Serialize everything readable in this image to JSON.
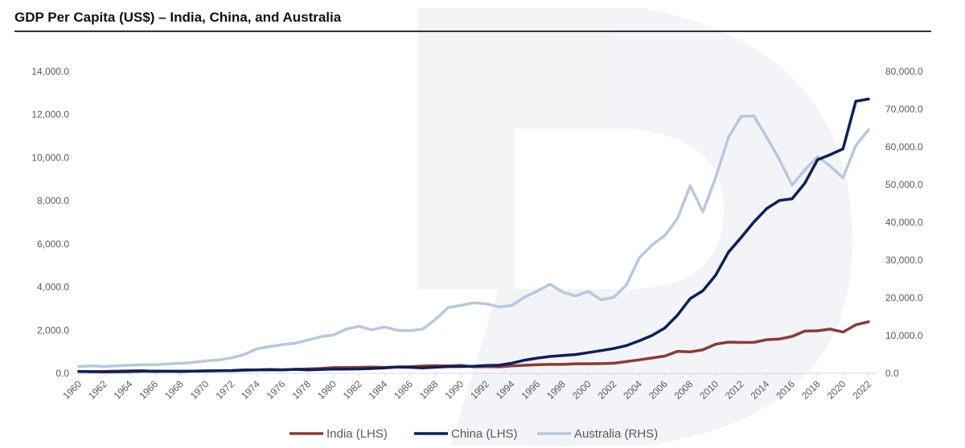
{
  "title": "GDP Per Capita (US$) – India, China, and Australia",
  "chart_data": {
    "type": "line",
    "title": "GDP Per Capita (US$) – India, China, and Australia",
    "xlabel": "",
    "ylabel_left": "",
    "ylabel_right": "",
    "x": [
      1960,
      1961,
      1962,
      1963,
      1964,
      1965,
      1966,
      1967,
      1968,
      1969,
      1970,
      1971,
      1972,
      1973,
      1974,
      1975,
      1976,
      1977,
      1978,
      1979,
      1980,
      1981,
      1982,
      1983,
      1984,
      1985,
      1986,
      1987,
      1988,
      1989,
      1990,
      1991,
      1992,
      1993,
      1994,
      1995,
      1996,
      1997,
      1998,
      1999,
      2000,
      2001,
      2002,
      2003,
      2004,
      2005,
      2006,
      2007,
      2008,
      2009,
      2010,
      2011,
      2012,
      2013,
      2014,
      2015,
      2016,
      2017,
      2018,
      2019,
      2020,
      2021,
      2022
    ],
    "x_tick_labels": [
      "1960",
      "1962",
      "1964",
      "1966",
      "1968",
      "1970",
      "1972",
      "1974",
      "1976",
      "1978",
      "1980",
      "1982",
      "1984",
      "1986",
      "1988",
      "1990",
      "1992",
      "1994",
      "1996",
      "1998",
      "2000",
      "2002",
      "2004",
      "2006",
      "2008",
      "2010",
      "2012",
      "2014",
      "2016",
      "2018",
      "2020",
      "2022"
    ],
    "ylim_left": [
      0,
      14000
    ],
    "ylim_right": [
      0,
      80000
    ],
    "y_ticks_left": [
      "0.0",
      "2,000.0",
      "4,000.0",
      "6,000.0",
      "8,000.0",
      "10,000.0",
      "12,000.0",
      "14,000.0"
    ],
    "y_ticks_right": [
      "0.0",
      "10,000.0",
      "20,000.0",
      "30,000.0",
      "40,000.0",
      "50,000.0",
      "60,000.0",
      "70,000.0",
      "80,000.0"
    ],
    "grid": false,
    "legend_position": "bottom-center",
    "series": [
      {
        "name": "India (LHS)",
        "axis": "left",
        "color": "#8B3A36",
        "values": [
          82,
          85,
          89,
          101,
          115,
          119,
          90,
          96,
          99,
          106,
          112,
          118,
          122,
          143,
          163,
          158,
          161,
          186,
          204,
          222,
          266,
          271,
          274,
          291,
          277,
          296,
          310,
          340,
          354,
          347,
          368,
          303,
          317,
          301,
          346,
          374,
          400,
          415,
          413,
          442,
          443,
          452,
          471,
          546,
          624,
          710,
          802,
          1022,
          993,
          1096,
          1351,
          1450,
          1434,
          1438,
          1560,
          1590,
          1714,
          1958,
          1974,
          2050,
          1913,
          2250,
          2389
        ]
      },
      {
        "name": "China (LHS)",
        "axis": "left",
        "color": "#0D1F5C",
        "values": [
          90,
          76,
          70,
          74,
          85,
          98,
          104,
          97,
          91,
          100,
          113,
          118,
          132,
          157,
          160,
          178,
          165,
          185,
          156,
          184,
          195,
          197,
          203,
          225,
          251,
          294,
          281,
          252,
          284,
          311,
          318,
          333,
          366,
          377,
          473,
          609,
          709,
          781,
          828,
          873,
          959,
          1053,
          1149,
          1289,
          1509,
          1753,
          2099,
          2694,
          3468,
          3832,
          4550,
          5614,
          6301,
          7020,
          7636,
          8017,
          8094,
          8817,
          9905,
          10144,
          10409,
          12618,
          12720
        ]
      },
      {
        "name": "Australia (RHS)",
        "axis": "right",
        "color": "#B8C7E0",
        "values": [
          1800,
          1950,
          1800,
          2000,
          2150,
          2300,
          2300,
          2500,
          2650,
          2900,
          3300,
          3550,
          4100,
          5000,
          6500,
          7100,
          7600,
          8000,
          8800,
          9700,
          10200,
          11700,
          12500,
          11500,
          12300,
          11400,
          11300,
          11700,
          14300,
          17400,
          18000,
          18700,
          18400,
          17600,
          18000,
          20200,
          21800,
          23600,
          21500,
          20500,
          21700,
          19500,
          20100,
          23500,
          30600,
          34000,
          36500,
          41000,
          49700,
          42800,
          51900,
          62500,
          68100,
          68200,
          62600,
          56700,
          49900,
          53900,
          57400,
          54900,
          51800,
          60400,
          64500
        ]
      }
    ]
  }
}
